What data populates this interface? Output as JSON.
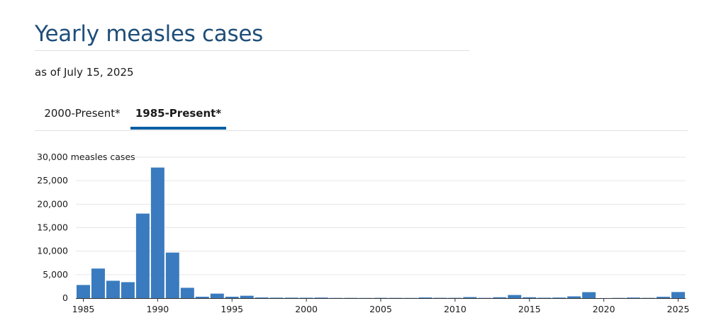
{
  "page": {
    "title": "Yearly measles cases",
    "as_of": "as of July 15, 2025"
  },
  "tabs": [
    {
      "label": "2000-Present*",
      "active": false
    },
    {
      "label": "1985-Present*",
      "active": true
    }
  ],
  "colors": {
    "bar": "#3a7bbf",
    "title": "#1f4e79",
    "tab_active": "#005ea2",
    "gridline": "#e6e6e6"
  },
  "chart_data": {
    "type": "bar",
    "ylabel": "measles cases",
    "ylim": [
      0,
      30000
    ],
    "y_ticks": [
      0,
      5000,
      10000,
      15000,
      20000,
      25000,
      30000
    ],
    "y_tick_labels": [
      "0",
      "5,000",
      "10,000",
      "15,000",
      "20,000",
      "25,000",
      "30,000 measles cases"
    ],
    "x_ticks": [
      1985,
      1990,
      1995,
      2000,
      2005,
      2010,
      2015,
      2020,
      2025
    ],
    "grid": true,
    "legend": "none",
    "x": [
      1985,
      1986,
      1987,
      1988,
      1989,
      1990,
      1991,
      1992,
      1993,
      1994,
      1995,
      1996,
      1997,
      1998,
      1999,
      2000,
      2001,
      2002,
      2003,
      2004,
      2005,
      2006,
      2007,
      2008,
      2009,
      2010,
      2011,
      2012,
      2013,
      2014,
      2015,
      2016,
      2017,
      2018,
      2019,
      2020,
      2021,
      2022,
      2023,
      2024,
      2025
    ],
    "values": [
      2800,
      6300,
      3700,
      3400,
      18000,
      27800,
      9700,
      2200,
      300,
      960,
      300,
      510,
      140,
      100,
      100,
      86,
      116,
      44,
      56,
      37,
      66,
      55,
      43,
      140,
      71,
      63,
      220,
      55,
      187,
      667,
      188,
      86,
      120,
      375,
      1274,
      13,
      49,
      121,
      59,
      285,
      1300
    ]
  }
}
